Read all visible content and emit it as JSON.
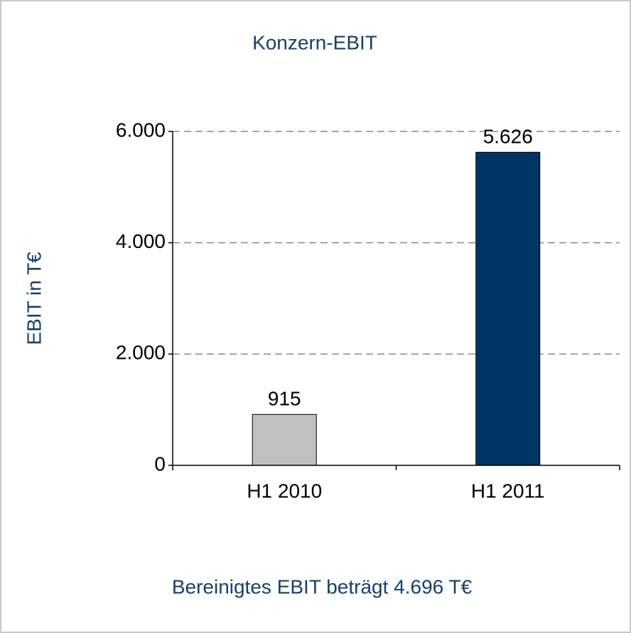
{
  "chart_data": {
    "type": "bar",
    "title": "Konzern-EBIT",
    "y_axis_label": "EBIT in T€",
    "annotation": "Bereinigtes EBIT beträgt 4.696 T€",
    "categories": [
      "H1 2010",
      "H1 2011"
    ],
    "values": [
      915,
      5626
    ],
    "value_labels": [
      "915",
      "5.626"
    ],
    "colors": [
      "#c0c0c0",
      "#003366"
    ],
    "ylim": [
      0,
      6000
    ],
    "yticks": [
      0,
      {
        "value": 2000,
        "label": "2.000"
      },
      {
        "value": 4000,
        "label": "4.000"
      },
      {
        "value": 6000,
        "label": "6.000"
      }
    ],
    "grid": true
  }
}
